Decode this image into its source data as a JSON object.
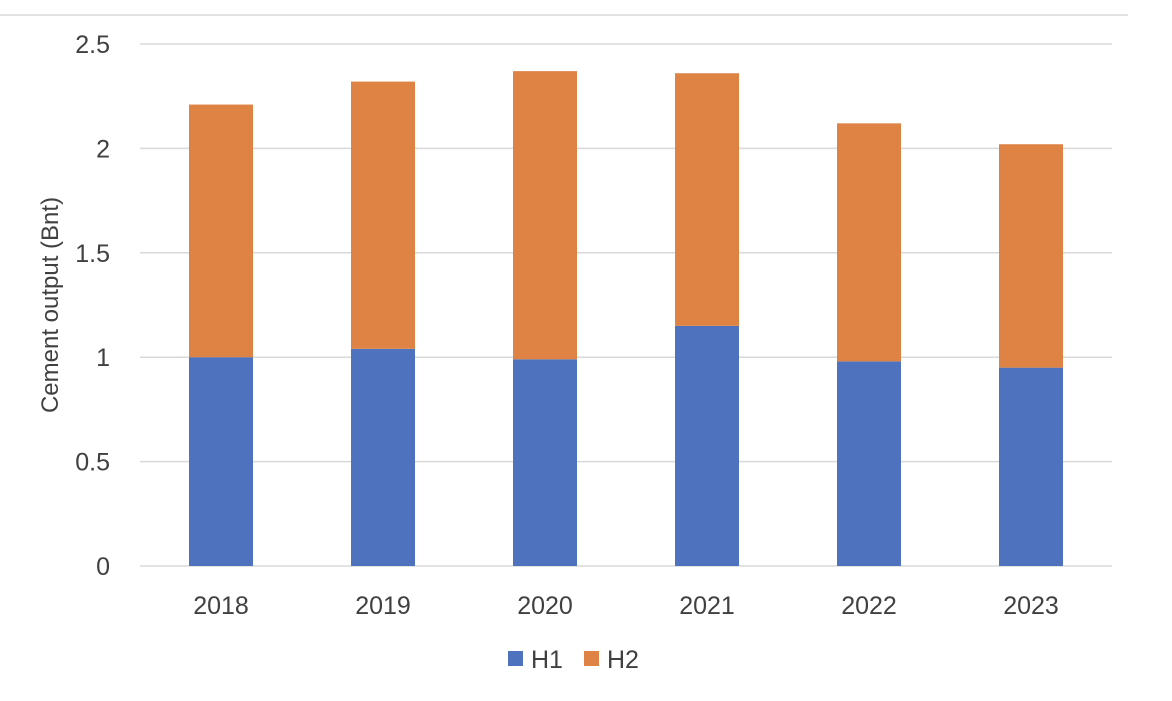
{
  "chart_data": {
    "type": "bar",
    "stacked": true,
    "categories": [
      "2018",
      "2019",
      "2020",
      "2021",
      "2022",
      "2023"
    ],
    "series": [
      {
        "name": "H1",
        "color": "#4e72be",
        "values": [
          1.0,
          1.04,
          0.99,
          1.15,
          0.98,
          0.95
        ]
      },
      {
        "name": "H2",
        "color": "#de8344",
        "values": [
          1.21,
          1.28,
          1.38,
          1.21,
          1.14,
          1.07
        ]
      }
    ],
    "title": "",
    "xlabel": "",
    "ylabel": "Cement output (Bnt)",
    "ylim": [
      0,
      2.5
    ],
    "yticks": [
      0,
      0.5,
      1,
      1.5,
      2,
      2.5
    ],
    "ytick_labels": [
      "0",
      "0.5",
      "1",
      "1.5",
      "2",
      "2.5"
    ],
    "grid": true,
    "legend_position": "bottom"
  }
}
